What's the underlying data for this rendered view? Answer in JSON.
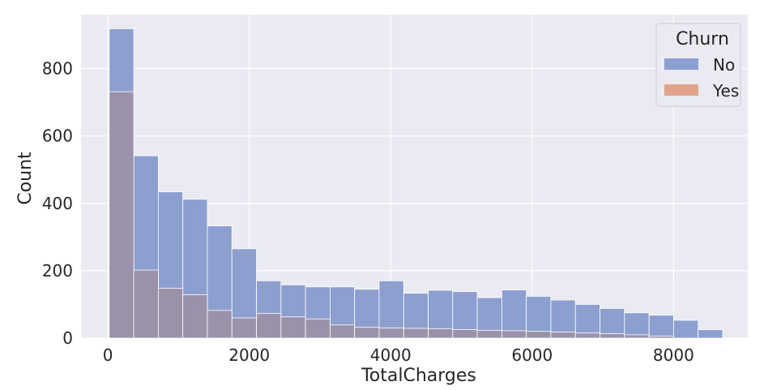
{
  "chart_data": {
    "type": "bar",
    "subtype": "overlapping-histogram",
    "xlabel": "TotalCharges",
    "ylabel": "Count",
    "xlim": [
      -380,
      9050
    ],
    "ylim": [
      0,
      960
    ],
    "xticks": [
      0,
      2000,
      4000,
      6000,
      8000
    ],
    "yticks": [
      0,
      200,
      400,
      600,
      800
    ],
    "grid": true,
    "bin_width": 347,
    "bin_starts": [
      19,
      366,
      713,
      1060,
      1407,
      1754,
      2101,
      2448,
      2795,
      3142,
      3489,
      3836,
      4183,
      4530,
      4877,
      5224,
      5571,
      5918,
      6265,
      6612,
      6959,
      7306,
      7653,
      8000,
      8347
    ],
    "series": [
      {
        "name": "No",
        "color": "#8c9fcf",
        "values": [
          918,
          541,
          434,
          412,
          333,
          265,
          170,
          158,
          152,
          152,
          145,
          170,
          133,
          142,
          138,
          120,
          143,
          124,
          113,
          100,
          88,
          75,
          68,
          53,
          25
        ]
      },
      {
        "name": "Yes",
        "color": "#e0a48a",
        "values": [
          731,
          202,
          148,
          129,
          82,
          60,
          73,
          63,
          57,
          39,
          32,
          30,
          29,
          28,
          25,
          23,
          22,
          20,
          18,
          15,
          13,
          10,
          6,
          0,
          0
        ]
      }
    ],
    "overlap_color": "#9b92aa",
    "legend": {
      "title": "Churn",
      "position": "top-right",
      "entries": [
        "No",
        "Yes"
      ]
    }
  }
}
